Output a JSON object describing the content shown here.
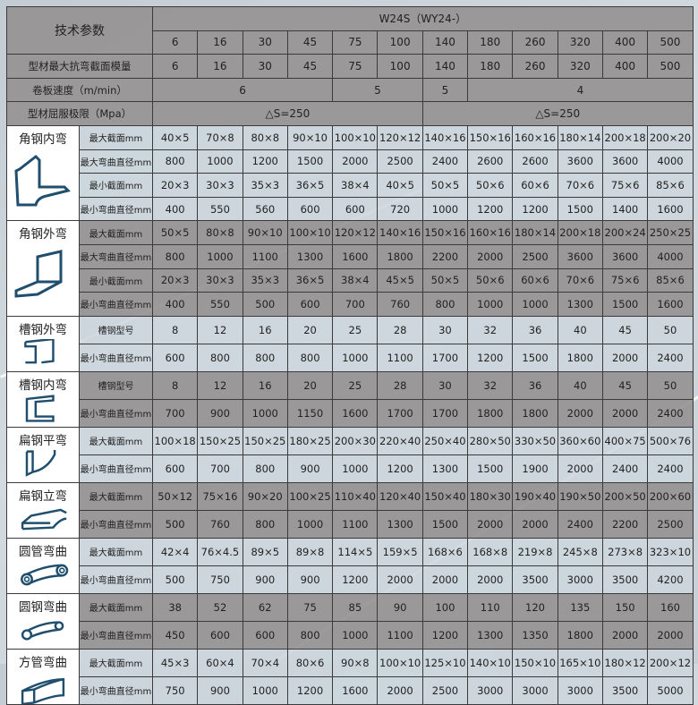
{
  "header": {
    "title": "技术参数",
    "model": "W24S（WY24-）",
    "sizes": [
      "6",
      "16",
      "30",
      "45",
      "75",
      "100",
      "140",
      "180",
      "260",
      "320",
      "400",
      "500"
    ],
    "modulus_label": "型材最大抗弯截面模量",
    "modulus_values": [
      "6",
      "16",
      "30",
      "45",
      "75",
      "100",
      "140",
      "180",
      "260",
      "320",
      "400",
      "500"
    ],
    "speed_label": "卷板速度（m/min）",
    "speed_values": [
      {
        "value": "6",
        "span": 4
      },
      {
        "value": "5",
        "span": 2
      },
      {
        "value": "5",
        "span": 1
      },
      {
        "value": "4",
        "span": 5
      }
    ],
    "yield_label": "型材屈服极限（Mpa）",
    "yield_values": [
      {
        "value": "△S=250",
        "span": 6
      },
      {
        "value": "△S=250",
        "span": 6
      }
    ]
  },
  "colors": {
    "dark": "#969292",
    "light": "#cdd6dd",
    "icon": "#1f4e6e"
  },
  "groups": [
    {
      "name": "角钢内弯",
      "icon": "angle-inner-bend-icon",
      "shade": "light",
      "rows": [
        {
          "label": "最大截面mm",
          "values": [
            "40×5",
            "70×8",
            "80×8",
            "90×10",
            "100×10",
            "120×12",
            "140×16",
            "150×16",
            "160×16",
            "180×14",
            "200×18",
            "200×20"
          ]
        },
        {
          "label": "最大弯曲直径mm",
          "values": [
            "800",
            "1000",
            "1200",
            "1500",
            "2000",
            "2500",
            "2400",
            "2600",
            "2600",
            "3600",
            "3600",
            "4000"
          ]
        },
        {
          "label": "最小截面mm",
          "values": [
            "20×3",
            "30×3",
            "35×3",
            "36×5",
            "38×4",
            "40×5",
            "50×5",
            "50×6",
            "60×6",
            "70×6",
            "75×6",
            "85×6"
          ]
        },
        {
          "label": "最小弯曲直径mm",
          "values": [
            "400",
            "550",
            "560",
            "600",
            "600",
            "720",
            "1000",
            "1200",
            "1200",
            "1500",
            "1400",
            "1600"
          ]
        }
      ]
    },
    {
      "name": "角钢外弯",
      "icon": "angle-outer-bend-icon",
      "shade": "dark",
      "rows": [
        {
          "label": "最大截面mm",
          "values": [
            "50×5",
            "80×8",
            "90×10",
            "100×10",
            "120×12",
            "140×16",
            "150×16",
            "160×16",
            "180×14",
            "200×18",
            "200×24",
            "250×25"
          ]
        },
        {
          "label": "最大弯曲直径mm",
          "values": [
            "800",
            "1000",
            "1100",
            "1300",
            "1600",
            "1800",
            "2200",
            "2000",
            "2500",
            "3600",
            "3600",
            "4000"
          ]
        },
        {
          "label": "最小截面mm",
          "values": [
            "20×3",
            "30×3",
            "35×3",
            "36×5",
            "38×4",
            "45×5",
            "50×5",
            "50×6",
            "60×6",
            "70×6",
            "75×6",
            "85×6"
          ]
        },
        {
          "label": "最小弯曲直径mm",
          "values": [
            "400",
            "550",
            "500",
            "600",
            "700",
            "760",
            "800",
            "1000",
            "1000",
            "1300",
            "1500",
            "1600"
          ]
        }
      ]
    },
    {
      "name": "槽钢外弯",
      "icon": "channel-outer-bend-icon",
      "shade": "light",
      "rows": [
        {
          "label": "槽钢型号",
          "values": [
            "8",
            "12",
            "16",
            "20",
            "25",
            "28",
            "30",
            "32",
            "36",
            "40",
            "45",
            "50"
          ]
        },
        {
          "label": "最小弯曲直径mm",
          "values": [
            "600",
            "800",
            "800",
            "800",
            "1000",
            "1100",
            "1700",
            "1200",
            "1500",
            "1800",
            "2000",
            "2400"
          ]
        }
      ]
    },
    {
      "name": "槽钢内弯",
      "icon": "channel-inner-bend-icon",
      "shade": "dark",
      "rows": [
        {
          "label": "槽钢型号",
          "values": [
            "8",
            "12",
            "16",
            "20",
            "25",
            "28",
            "30",
            "32",
            "36",
            "40",
            "45",
            "50"
          ]
        },
        {
          "label": "最小弯曲直径mm",
          "values": [
            "700",
            "900",
            "1000",
            "1150",
            "1600",
            "1700",
            "1700",
            "1800",
            "1800",
            "2000",
            "2000",
            "2400"
          ]
        }
      ]
    },
    {
      "name": "扁钢平弯",
      "icon": "flat-steel-flat-bend-icon",
      "shade": "light",
      "rows": [
        {
          "label": "最大截面mm",
          "values": [
            "100×18",
            "150×25",
            "150×25",
            "180×25",
            "200×30",
            "220×40",
            "250×40",
            "280×50",
            "330×50",
            "360×60",
            "400×75",
            "500×76"
          ]
        },
        {
          "label": "最小弯曲直径mm",
          "values": [
            "600",
            "700",
            "800",
            "900",
            "1000",
            "1200",
            "1300",
            "1500",
            "1900",
            "2000",
            "2400",
            "2400"
          ]
        }
      ]
    },
    {
      "name": "扁钢立弯",
      "icon": "flat-steel-edge-bend-icon",
      "shade": "dark",
      "rows": [
        {
          "label": "最大截面mm",
          "values": [
            "50×12",
            "75×16",
            "90×20",
            "100×25",
            "110×40",
            "120×40",
            "150×40",
            "180×30",
            "190×40",
            "190×50",
            "200×50",
            "200×60"
          ]
        },
        {
          "label": "最小弯曲直径mm",
          "values": [
            "500",
            "760",
            "800",
            "1000",
            "1100",
            "1300",
            "1500",
            "2000",
            "2000",
            "2400",
            "2200",
            "2500"
          ]
        }
      ]
    },
    {
      "name": "圆管弯曲",
      "icon": "round-tube-bend-icon",
      "shade": "light",
      "rows": [
        {
          "label": "最大截面mm",
          "values": [
            "42×4",
            "76×4.5",
            "89×5",
            "89×8",
            "114×5",
            "159×5",
            "168×6",
            "168×8",
            "219×8",
            "245×8",
            "273×8",
            "323×10"
          ]
        },
        {
          "label": "最小弯曲直径mm",
          "values": [
            "500",
            "750",
            "900",
            "900",
            "1200",
            "2000",
            "2000",
            "2000",
            "3500",
            "3000",
            "3500",
            "4200"
          ]
        }
      ]
    },
    {
      "name": "圆钢弯曲",
      "icon": "round-bar-bend-icon",
      "shade": "dark",
      "rows": [
        {
          "label": "最大截面mm",
          "values": [
            "38",
            "52",
            "62",
            "75",
            "85",
            "90",
            "100",
            "110",
            "120",
            "135",
            "150",
            "160"
          ]
        },
        {
          "label": "最小弯曲直径mm",
          "values": [
            "450",
            "600",
            "600",
            "800",
            "1000",
            "1100",
            "1200",
            "1300",
            "1350",
            "1800",
            "2000",
            "2000"
          ]
        }
      ]
    },
    {
      "name": "方管弯曲",
      "icon": "square-tube-bend-icon",
      "shade": "light",
      "rows": [
        {
          "label": "最大截面mm",
          "values": [
            "45×3",
            "60×4",
            "70×4",
            "80×6",
            "90×8",
            "100×10",
            "125×10",
            "140×10",
            "150×10",
            "165×10",
            "180×12",
            "200×12"
          ]
        },
        {
          "label": "最小弯曲直径mm",
          "values": [
            "750",
            "900",
            "1000",
            "1200",
            "1600",
            "2000",
            "2500",
            "3000",
            "3000",
            "3000",
            "3500",
            "5000"
          ]
        }
      ]
    }
  ]
}
